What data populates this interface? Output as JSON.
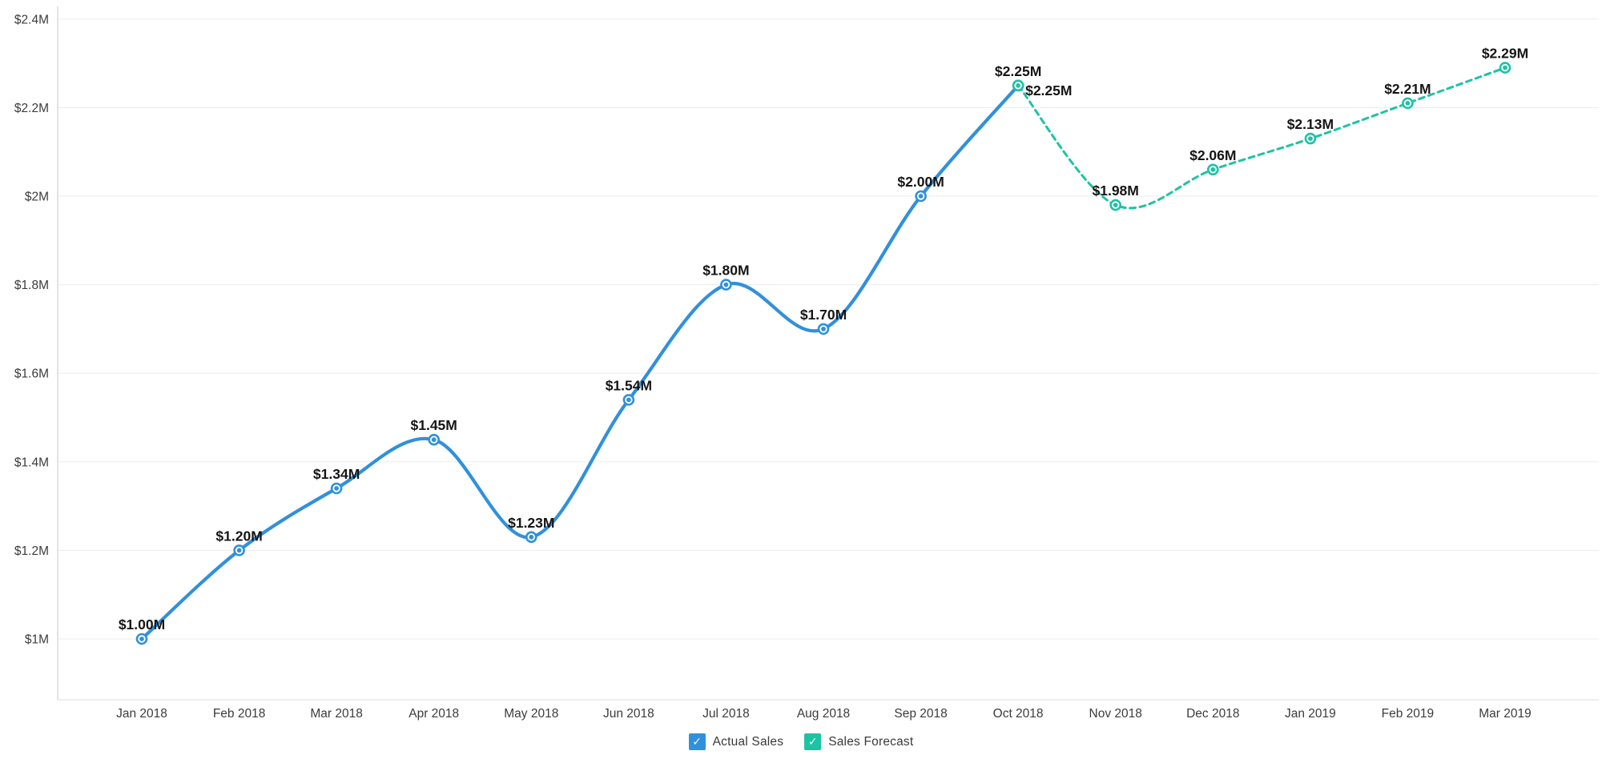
{
  "chart_data": {
    "type": "line",
    "title": "",
    "x_categories": [
      "Jan 2018",
      "Feb 2018",
      "Mar 2018",
      "Apr 2018",
      "May 2018",
      "Jun 2018",
      "Jul 2018",
      "Aug 2018",
      "Sep 2018",
      "Oct 2018",
      "Nov 2018",
      "Dec 2018",
      "Jan 2019",
      "Feb 2019",
      "Mar 2019"
    ],
    "y_axis": {
      "unit": "millions USD",
      "min": 1.0,
      "max": 2.4,
      "ticks": [
        {
          "value": 1.0,
          "label": "$1M"
        },
        {
          "value": 1.2,
          "label": "$1.2M"
        },
        {
          "value": 1.4,
          "label": "$1.4M"
        },
        {
          "value": 1.6,
          "label": "$1.6M"
        },
        {
          "value": 1.8,
          "label": "$1.8M"
        },
        {
          "value": 2.0,
          "label": "$2M"
        },
        {
          "value": 2.2,
          "label": "$2.2M"
        },
        {
          "value": 2.4,
          "label": "$2.4M"
        }
      ]
    },
    "grid": true,
    "legend_position": "bottom",
    "series": [
      {
        "name": "Actual Sales",
        "color": "#3190DC",
        "style": "solid",
        "x_start_index": 0,
        "values": [
          1.0,
          1.2,
          1.34,
          1.45,
          1.23,
          1.54,
          1.8,
          1.7,
          2.0,
          2.25
        ],
        "labels": [
          "$1.00M",
          "$1.20M",
          "$1.34M",
          "$1.45M",
          "$1.23M",
          "$1.54M",
          "$1.80M",
          "$1.70M",
          "$2.00M",
          "$2.25M"
        ]
      },
      {
        "name": "Sales Forecast",
        "color": "#1EC3A3",
        "style": "dashed",
        "x_start_index": 9,
        "values": [
          2.25,
          1.98,
          2.06,
          2.13,
          2.21,
          2.29
        ],
        "labels": [
          "$2.25M",
          "$1.98M",
          "$2.06M",
          "$2.13M",
          "$2.21M",
          "$2.29M"
        ],
        "first_label_placement": "right"
      }
    ],
    "legend": [
      {
        "label": "Actual Sales",
        "color": "#3190DC",
        "checked": true
      },
      {
        "label": "Sales Forecast",
        "color": "#1EC3A3",
        "checked": true
      }
    ]
  },
  "icons": {
    "legend_check": "✓"
  },
  "colors": {
    "background": "#FFFFFF",
    "gridline": "#EDEDED",
    "y_axis_line": "#C9C9C9",
    "x_baseline": "#DCDCDC",
    "tick_text": "#3C3C3C",
    "point_label_text": "#151515"
  }
}
